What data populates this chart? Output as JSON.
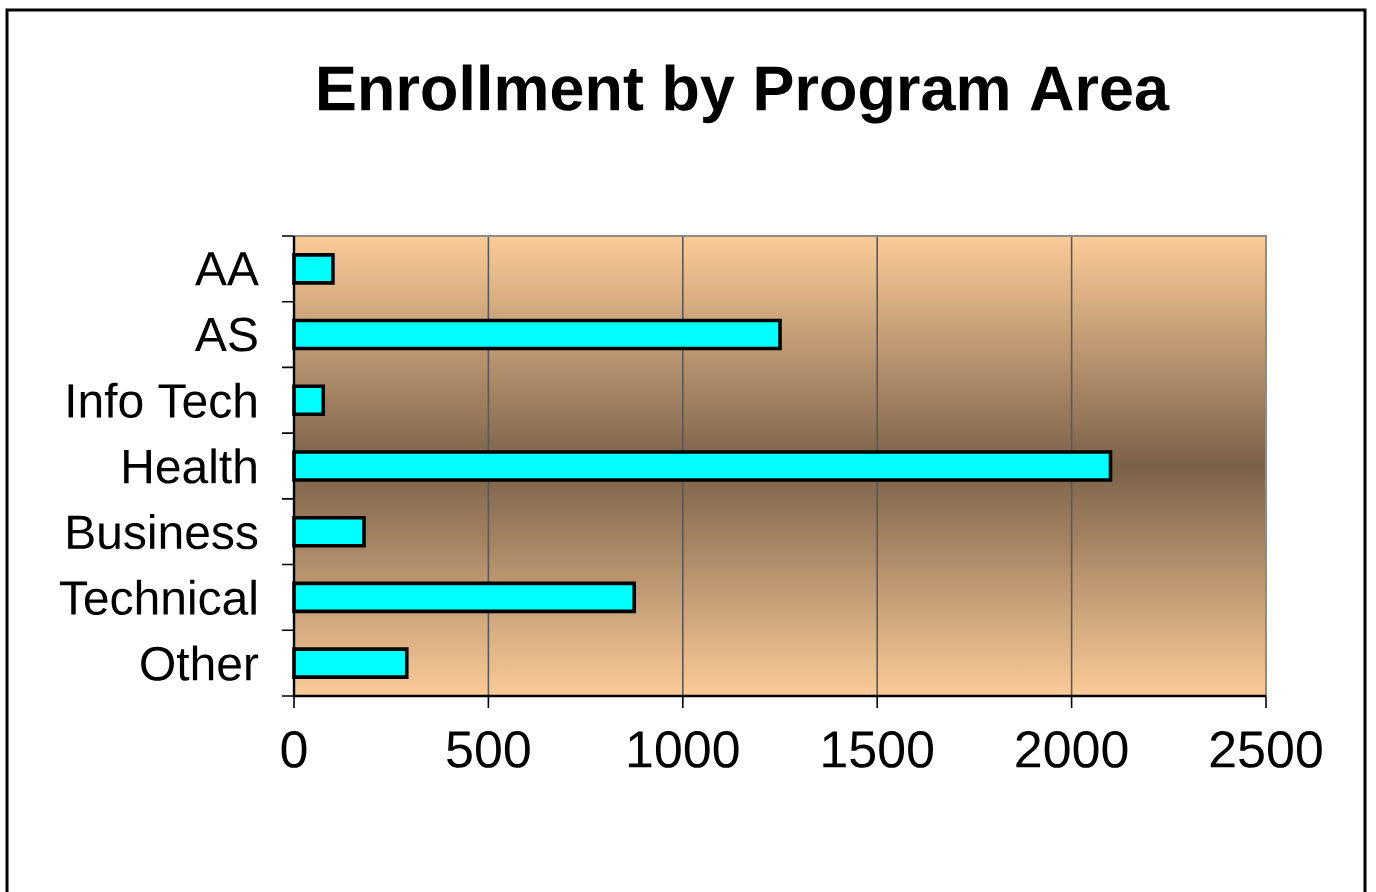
{
  "chart_data": {
    "type": "bar",
    "orientation": "horizontal",
    "title": "Enrollment by Program Area",
    "categories": [
      "AA",
      "AS",
      "Info Tech",
      "Health",
      "Business",
      "Technical",
      "Other"
    ],
    "values": [
      100,
      1250,
      75,
      2100,
      180,
      875,
      290
    ],
    "color": "#00ffff",
    "xlim": [
      0,
      2500
    ],
    "xticks": [
      0,
      500,
      1000,
      1500,
      2000,
      2500
    ],
    "grid": "x"
  }
}
